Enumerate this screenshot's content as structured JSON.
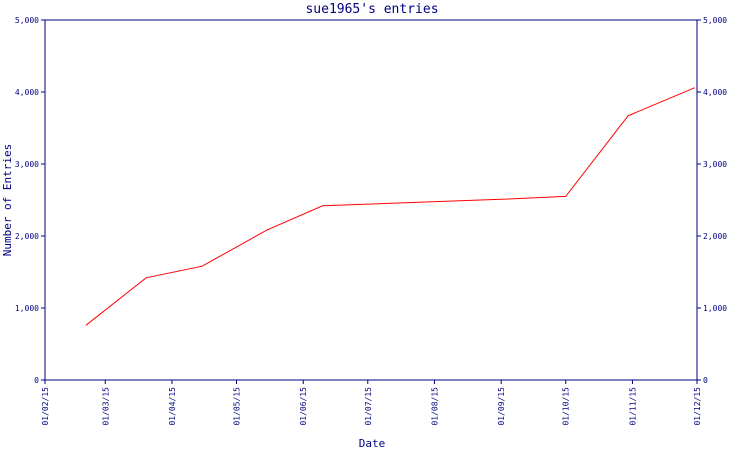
{
  "chart_data": {
    "type": "line",
    "title": "sue1965's entries",
    "xlabel": "Date",
    "ylabel": "Number of Entries",
    "ylim": [
      0,
      5000
    ],
    "yticks": [
      0,
      1000,
      2000,
      3000,
      4000,
      5000
    ],
    "ytick_labels": [
      "0",
      "1,000",
      "2,000",
      "3,000",
      "4,000",
      "5,000"
    ],
    "xlim": [
      "2015-02-01",
      "2015-12-01"
    ],
    "xticks": [
      "2015-02-01",
      "2015-03-01",
      "2015-04-01",
      "2015-05-01",
      "2015-06-01",
      "2015-07-01",
      "2015-08-01",
      "2015-09-01",
      "2015-10-01",
      "2015-11-01",
      "2015-12-01"
    ],
    "xtick_labels": [
      "01/02/15",
      "01/03/15",
      "01/04/15",
      "01/05/15",
      "01/06/15",
      "01/07/15",
      "01/08/15",
      "01/09/15",
      "01/10/15",
      "01/11/15",
      "01/12/15"
    ],
    "grid": false,
    "right_axis": true,
    "colors": {
      "series": "#ff0000",
      "axes": "#000080"
    },
    "series": [
      {
        "x": [
          "2015-02-20",
          "2015-03-20",
          "2015-04-15",
          "2015-05-15",
          "2015-06-10",
          "2015-09-01",
          "2015-10-01",
          "2015-10-30",
          "2015-11-30"
        ],
        "y": [
          760,
          1420,
          1580,
          2080,
          2420,
          2510,
          2550,
          3670,
          4060
        ]
      }
    ]
  }
}
